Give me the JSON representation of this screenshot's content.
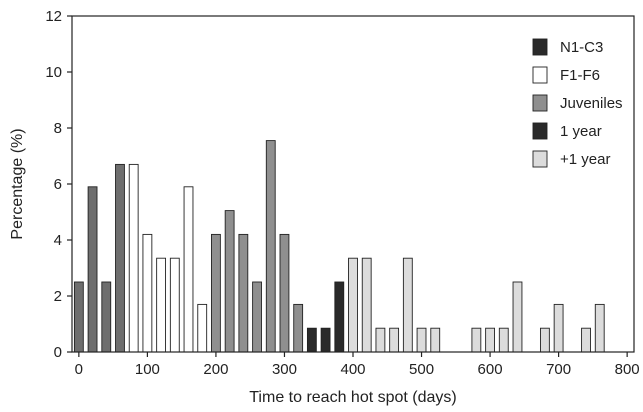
{
  "chart_data": {
    "type": "bar",
    "xlabel": "Time to reach hot spot (days)",
    "ylabel": "Percentage (%)",
    "xlim": [
      -10,
      810
    ],
    "ylim": [
      0,
      12
    ],
    "xticks": [
      0,
      100,
      200,
      300,
      400,
      500,
      600,
      700,
      800
    ],
    "yticks": [
      0,
      2,
      4,
      6,
      8,
      10,
      12
    ],
    "legend_position": "top-right",
    "bin_width": 20,
    "series": [
      {
        "name": "N1-C3",
        "color": "#2a2a2a",
        "x": [],
        "values": []
      },
      {
        "name": "F1-F6",
        "color": "#ffffff",
        "x": [
          80,
          100,
          120,
          140,
          160,
          180
        ],
        "values": [
          6.7,
          4.2,
          3.35,
          3.35,
          5.9,
          1.7
        ]
      },
      {
        "name": "Juveniles",
        "color": "#8f8f8f",
        "x": [
          200,
          220,
          240,
          260,
          280,
          300,
          320
        ],
        "values": [
          4.2,
          5.05,
          4.2,
          2.5,
          7.55,
          4.2,
          1.7
        ]
      },
      {
        "name": "1 year",
        "color": "#2a2a2a",
        "x": [
          340,
          360,
          380
        ],
        "values": [
          0.85,
          0.85,
          2.5
        ]
      },
      {
        "name": "+1 year",
        "color": "#dcdcdc",
        "x": [
          400,
          420,
          440,
          460,
          480,
          500,
          520,
          580,
          600,
          620,
          640,
          680,
          700,
          740,
          760
        ],
        "values": [
          3.35,
          3.35,
          0.85,
          0.85,
          3.35,
          0.85,
          0.85,
          0.85,
          0.85,
          0.85,
          2.5,
          0.85,
          1.7,
          0.85,
          1.7
        ]
      },
      {
        "name": "",
        "color": "#6e6e6e",
        "x": [
          0,
          20,
          40,
          60
        ],
        "values": [
          2.5,
          5.9,
          2.5,
          6.7
        ]
      }
    ]
  }
}
